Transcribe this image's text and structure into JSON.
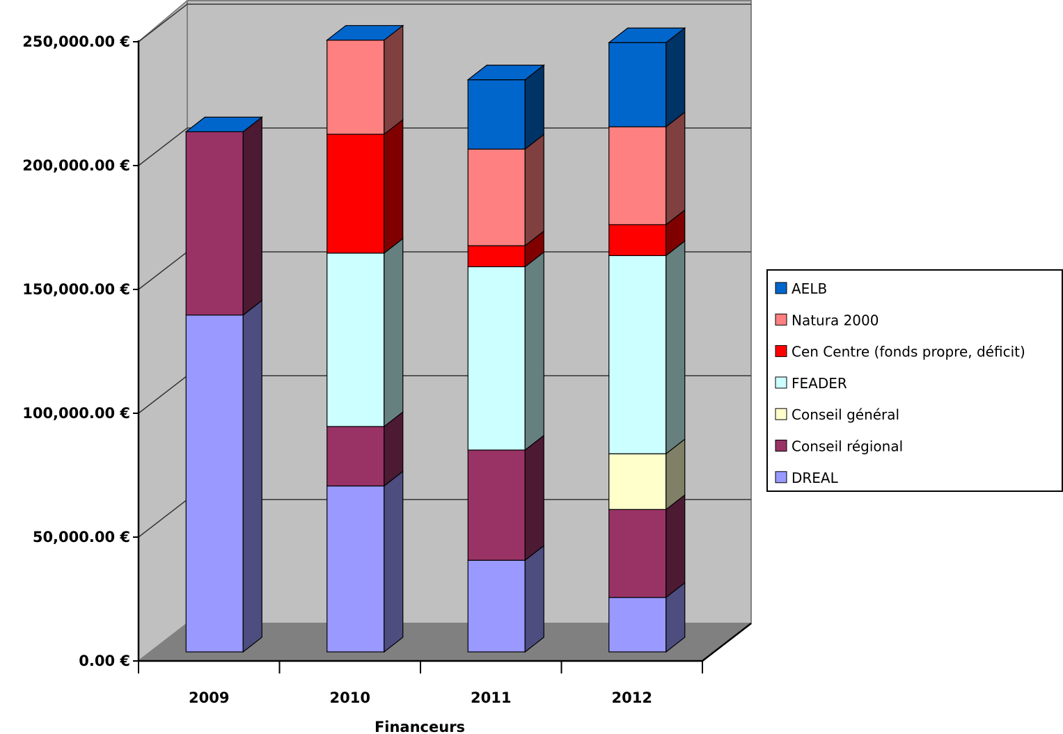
{
  "chart_data": {
    "type": "bar",
    "stacked": true,
    "three_d": true,
    "title": "",
    "xlabel": "Financeurs",
    "ylabel": "",
    "categories": [
      "2009",
      "2010",
      "2011",
      "2012"
    ],
    "ylim": [
      0,
      250000
    ],
    "yticks": [
      0,
      50000,
      100000,
      150000,
      200000,
      250000
    ],
    "ytick_labels": [
      "0.00 €",
      "50,000.00 €",
      "100,000.00 €",
      "150,000.00 €",
      "200,000.00 €",
      "250,000.00 €"
    ],
    "grid": true,
    "legend_position": "right",
    "series": [
      {
        "name": "DREAL",
        "color": "#9999ff",
        "values": [
          136000,
          67000,
          37000,
          22000
        ]
      },
      {
        "name": "Conseil régional",
        "color": "#993366",
        "values": [
          74000,
          24000,
          44500,
          35500
        ]
      },
      {
        "name": "Conseil général",
        "color": "#ffffcc",
        "values": [
          0,
          0,
          0,
          22500
        ]
      },
      {
        "name": "FEADER",
        "color": "#ccffff",
        "values": [
          0,
          70000,
          74000,
          80000
        ]
      },
      {
        "name": "Cen Centre (fonds propre, déficit)",
        "color": "#ff0000",
        "values": [
          0,
          48000,
          8500,
          12500
        ]
      },
      {
        "name": "Natura 2000",
        "color": "#ff8080",
        "values": [
          0,
          38000,
          39000,
          39500
        ]
      },
      {
        "name": "AELB",
        "color": "#0066cc",
        "values": [
          0,
          0,
          28000,
          34000
        ]
      }
    ],
    "legend_order": [
      "AELB",
      "Natura 2000",
      "Cen Centre (fonds propre, déficit)",
      "FEADER",
      "Conseil général",
      "Conseil régional",
      "DREAL"
    ]
  }
}
